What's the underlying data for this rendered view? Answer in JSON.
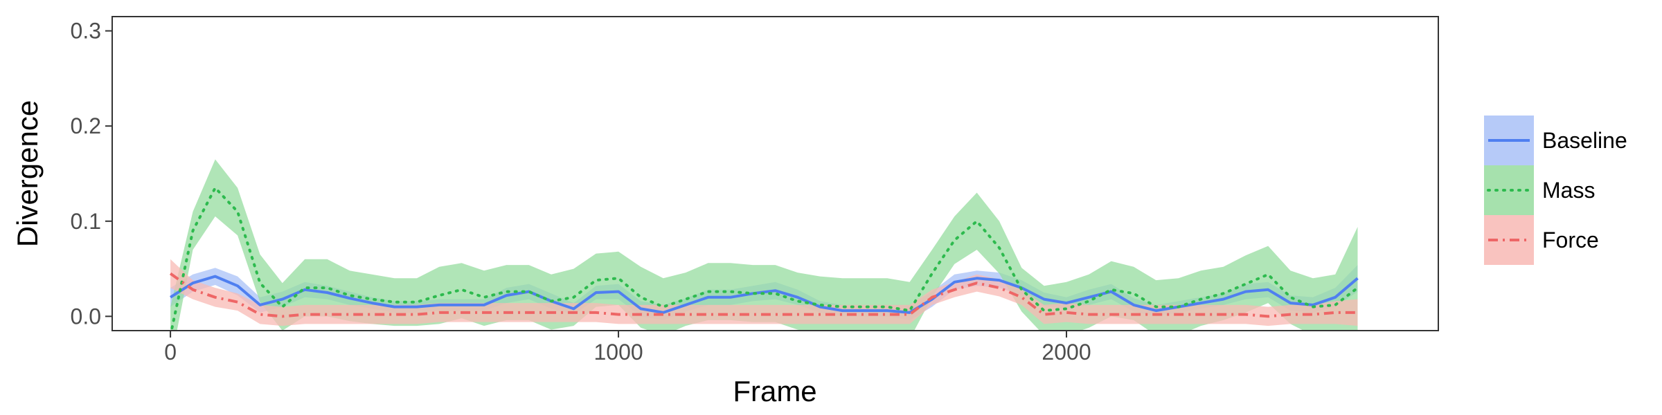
{
  "chart_data": {
    "type": "line",
    "xlabel": "Frame",
    "ylabel": "Divergence",
    "xlim": [
      -130,
      2830
    ],
    "ylim": [
      -0.015,
      0.315
    ],
    "xticks": [
      0,
      1000,
      2000
    ],
    "xtick_labels": [
      "0",
      "1000",
      "2000"
    ],
    "yticks": [
      0.0,
      0.1,
      0.2,
      0.3
    ],
    "ytick_labels": [
      "0.0",
      "0.1",
      "0.2",
      "0.3"
    ],
    "grid": false,
    "legend_position": "right",
    "series": [
      {
        "name": "Baseline",
        "color": "#4f7ff0",
        "fill": "#a9c1f7",
        "style": "solid",
        "x": [
          0,
          50,
          100,
          150,
          200,
          250,
          300,
          350,
          400,
          450,
          500,
          550,
          600,
          650,
          700,
          750,
          800,
          850,
          900,
          950,
          1000,
          1050,
          1100,
          1150,
          1200,
          1250,
          1300,
          1350,
          1400,
          1450,
          1500,
          1550,
          1600,
          1650,
          1700,
          1750,
          1800,
          1850,
          1900,
          1950,
          2000,
          2050,
          2100,
          2150,
          2200,
          2250,
          2300,
          2350,
          2400,
          2450,
          2500,
          2550,
          2600,
          2650
        ],
        "y": [
          0.02,
          0.035,
          0.042,
          0.032,
          0.012,
          0.018,
          0.028,
          0.025,
          0.019,
          0.014,
          0.01,
          0.01,
          0.012,
          0.012,
          0.012,
          0.022,
          0.026,
          0.016,
          0.008,
          0.025,
          0.026,
          0.008,
          0.004,
          0.012,
          0.02,
          0.02,
          0.024,
          0.027,
          0.02,
          0.01,
          0.006,
          0.006,
          0.006,
          0.004,
          0.018,
          0.036,
          0.04,
          0.038,
          0.03,
          0.018,
          0.014,
          0.02,
          0.026,
          0.012,
          0.006,
          0.01,
          0.014,
          0.018,
          0.026,
          0.028,
          0.014,
          0.012,
          0.02,
          0.04
        ],
        "lower": [
          0.01,
          0.026,
          0.033,
          0.022,
          0.004,
          0.01,
          0.02,
          0.018,
          0.012,
          0.008,
          0.004,
          0.004,
          0.006,
          0.006,
          0.006,
          0.014,
          0.018,
          0.008,
          0.002,
          0.018,
          0.018,
          0.0,
          -0.004,
          0.005,
          0.012,
          0.012,
          0.016,
          0.018,
          0.012,
          0.004,
          0.0,
          0.0,
          0.0,
          -0.004,
          0.01,
          0.028,
          0.032,
          0.03,
          0.022,
          0.011,
          0.008,
          0.012,
          0.018,
          0.005,
          0.0,
          0.004,
          0.008,
          0.012,
          0.018,
          0.02,
          0.006,
          0.004,
          0.01,
          0.026
        ],
        "upper": [
          0.03,
          0.044,
          0.051,
          0.042,
          0.02,
          0.026,
          0.036,
          0.032,
          0.026,
          0.02,
          0.016,
          0.016,
          0.018,
          0.018,
          0.018,
          0.03,
          0.034,
          0.024,
          0.014,
          0.032,
          0.034,
          0.016,
          0.012,
          0.019,
          0.028,
          0.028,
          0.032,
          0.036,
          0.028,
          0.016,
          0.012,
          0.012,
          0.012,
          0.012,
          0.026,
          0.044,
          0.048,
          0.046,
          0.038,
          0.025,
          0.02,
          0.028,
          0.034,
          0.019,
          0.012,
          0.016,
          0.02,
          0.024,
          0.034,
          0.036,
          0.022,
          0.02,
          0.03,
          0.054
        ]
      },
      {
        "name": "Mass",
        "color": "#2dba4e",
        "fill": "#96dc9f",
        "style": "dotted",
        "x": [
          0,
          50,
          100,
          150,
          200,
          250,
          300,
          350,
          400,
          450,
          500,
          550,
          600,
          650,
          700,
          750,
          800,
          850,
          900,
          950,
          1000,
          1050,
          1100,
          1150,
          1200,
          1250,
          1300,
          1350,
          1400,
          1450,
          1500,
          1550,
          1600,
          1650,
          1700,
          1750,
          1800,
          1850,
          1900,
          1950,
          2000,
          2050,
          2100,
          2150,
          2200,
          2250,
          2300,
          2350,
          2400,
          2450,
          2500,
          2550,
          2600,
          2650
        ],
        "y": [
          -0.02,
          0.09,
          0.135,
          0.11,
          0.035,
          0.01,
          0.03,
          0.03,
          0.022,
          0.018,
          0.015,
          0.015,
          0.022,
          0.028,
          0.02,
          0.026,
          0.026,
          0.016,
          0.02,
          0.038,
          0.04,
          0.02,
          0.01,
          0.018,
          0.026,
          0.026,
          0.024,
          0.024,
          0.016,
          0.012,
          0.01,
          0.01,
          0.01,
          0.006,
          0.045,
          0.08,
          0.1,
          0.072,
          0.028,
          0.006,
          0.008,
          0.016,
          0.028,
          0.024,
          0.01,
          0.01,
          0.018,
          0.024,
          0.034,
          0.044,
          0.02,
          0.01,
          0.012,
          0.03
        ],
        "lower": [
          -0.05,
          0.07,
          0.105,
          0.085,
          0.015,
          -0.015,
          0.0,
          0.0,
          -0.005,
          -0.008,
          -0.01,
          -0.01,
          -0.008,
          -0.002,
          -0.01,
          -0.004,
          -0.004,
          -0.014,
          -0.01,
          0.01,
          0.012,
          -0.012,
          -0.02,
          -0.01,
          -0.004,
          -0.004,
          -0.006,
          -0.006,
          -0.014,
          -0.018,
          -0.02,
          -0.02,
          -0.02,
          -0.024,
          0.02,
          0.055,
          0.07,
          0.045,
          0.005,
          -0.02,
          -0.02,
          -0.012,
          0.0,
          -0.004,
          -0.02,
          -0.02,
          -0.01,
          -0.004,
          0.004,
          0.014,
          -0.008,
          -0.02,
          -0.02,
          -0.03
        ],
        "upper": [
          0.01,
          0.11,
          0.165,
          0.135,
          0.065,
          0.035,
          0.06,
          0.06,
          0.048,
          0.044,
          0.04,
          0.04,
          0.052,
          0.056,
          0.048,
          0.054,
          0.054,
          0.044,
          0.05,
          0.066,
          0.068,
          0.052,
          0.04,
          0.046,
          0.056,
          0.056,
          0.054,
          0.054,
          0.046,
          0.042,
          0.04,
          0.04,
          0.04,
          0.036,
          0.07,
          0.105,
          0.13,
          0.1,
          0.051,
          0.032,
          0.036,
          0.044,
          0.058,
          0.052,
          0.038,
          0.04,
          0.048,
          0.052,
          0.064,
          0.074,
          0.048,
          0.04,
          0.044,
          0.094
        ]
      },
      {
        "name": "Force",
        "color": "#ee6666",
        "fill": "#f8b9b4",
        "style": "dashdot",
        "x": [
          0,
          50,
          100,
          150,
          200,
          250,
          300,
          350,
          400,
          450,
          500,
          550,
          600,
          650,
          700,
          750,
          800,
          850,
          900,
          950,
          1000,
          1050,
          1100,
          1150,
          1200,
          1250,
          1300,
          1350,
          1400,
          1450,
          1500,
          1550,
          1600,
          1650,
          1700,
          1750,
          1800,
          1850,
          1900,
          1950,
          2000,
          2050,
          2100,
          2150,
          2200,
          2250,
          2300,
          2350,
          2400,
          2450,
          2500,
          2550,
          2600,
          2650
        ],
        "y": [
          0.045,
          0.028,
          0.02,
          0.015,
          0.002,
          0.0,
          0.002,
          0.002,
          0.002,
          0.002,
          0.002,
          0.002,
          0.004,
          0.004,
          0.004,
          0.004,
          0.004,
          0.004,
          0.004,
          0.004,
          0.002,
          0.002,
          0.002,
          0.002,
          0.002,
          0.002,
          0.002,
          0.002,
          0.002,
          0.002,
          0.002,
          0.002,
          0.002,
          0.002,
          0.02,
          0.028,
          0.035,
          0.03,
          0.02,
          0.002,
          0.004,
          0.002,
          0.002,
          0.002,
          0.002,
          0.002,
          0.002,
          0.002,
          0.002,
          0.0,
          0.002,
          0.002,
          0.004,
          0.004
        ],
        "lower": [
          0.03,
          0.018,
          0.01,
          0.006,
          -0.008,
          -0.01,
          -0.008,
          -0.008,
          -0.008,
          -0.008,
          -0.008,
          -0.008,
          -0.006,
          -0.006,
          -0.006,
          -0.006,
          -0.006,
          -0.006,
          -0.006,
          -0.006,
          -0.008,
          -0.008,
          -0.008,
          -0.008,
          -0.008,
          -0.008,
          -0.008,
          -0.008,
          -0.008,
          -0.008,
          -0.008,
          -0.008,
          -0.008,
          -0.008,
          0.012,
          0.02,
          0.026,
          0.021,
          0.012,
          -0.008,
          -0.006,
          -0.008,
          -0.008,
          -0.008,
          -0.008,
          -0.008,
          -0.008,
          -0.008,
          -0.008,
          -0.01,
          -0.008,
          -0.008,
          -0.008,
          -0.01
        ],
        "upper": [
          0.06,
          0.038,
          0.03,
          0.024,
          0.012,
          0.01,
          0.012,
          0.012,
          0.012,
          0.012,
          0.012,
          0.012,
          0.014,
          0.014,
          0.014,
          0.014,
          0.014,
          0.014,
          0.014,
          0.014,
          0.012,
          0.012,
          0.012,
          0.012,
          0.012,
          0.012,
          0.012,
          0.012,
          0.012,
          0.012,
          0.012,
          0.012,
          0.012,
          0.012,
          0.028,
          0.036,
          0.044,
          0.039,
          0.028,
          0.012,
          0.014,
          0.012,
          0.012,
          0.012,
          0.012,
          0.012,
          0.012,
          0.012,
          0.012,
          0.01,
          0.012,
          0.012,
          0.016,
          0.018
        ]
      }
    ]
  }
}
